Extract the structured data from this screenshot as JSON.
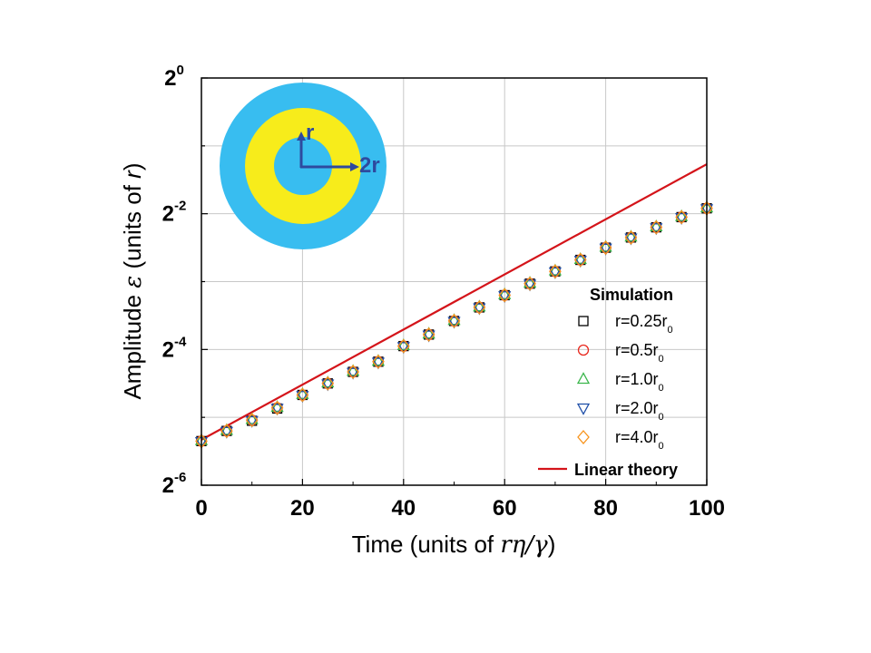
{
  "chart_data": {
    "type": "scatter",
    "xlabel_prefix": "Time (units of ",
    "xlabel_var": "rη/γ",
    "xlabel_suffix": ")",
    "ylabel_prefix": "Amplitude ",
    "ylabel_var": "ε",
    "ylabel_mid": " (units of ",
    "ylabel_var2": "r",
    "ylabel_suffix": ")",
    "xlim": [
      0,
      100
    ],
    "ylim_log2": [
      -6,
      0
    ],
    "y_scale": "log2",
    "grid": true,
    "legend_placement": "bottom-right",
    "x_ticks": [
      "0",
      "20",
      "40",
      "60",
      "80",
      "100"
    ],
    "y_ticks": [
      {
        "base": "2",
        "exp": "-6"
      },
      {
        "base": "2",
        "exp": "-4"
      },
      {
        "base": "2",
        "exp": "-2"
      },
      {
        "base": "2",
        "exp": "0"
      }
    ],
    "legend_title": "Simulation",
    "x": [
      0,
      5,
      10,
      15,
      20,
      25,
      30,
      35,
      40,
      45,
      50,
      55,
      60,
      65,
      70,
      75,
      80,
      85,
      90,
      95,
      100
    ],
    "series": [
      {
        "name": "r=0.25r",
        "sub": "0",
        "marker": "square",
        "color": "#000000",
        "y_log2": [
          -5.35,
          -5.2,
          -5.05,
          -4.87,
          -4.67,
          -4.5,
          -4.33,
          -4.18,
          -3.95,
          -3.78,
          -3.58,
          -3.38,
          -3.2,
          -3.03,
          -2.85,
          -2.68,
          -2.5,
          -2.35,
          -2.2,
          -2.05,
          -1.92
        ]
      },
      {
        "name": "r=0.5r",
        "sub": "0",
        "marker": "circle",
        "color": "#e8281e",
        "y_log2": [
          -5.35,
          -5.2,
          -5.04,
          -4.86,
          -4.67,
          -4.5,
          -4.33,
          -4.18,
          -3.95,
          -3.78,
          -3.58,
          -3.38,
          -3.2,
          -3.03,
          -2.85,
          -2.68,
          -2.5,
          -2.35,
          -2.2,
          -2.05,
          -1.92
        ]
      },
      {
        "name": "r=1.0r",
        "sub": "0",
        "marker": "triangle-up",
        "color": "#39b54a",
        "y_log2": [
          -5.34,
          -5.19,
          -5.03,
          -4.85,
          -4.66,
          -4.49,
          -4.32,
          -4.17,
          -3.94,
          -3.77,
          -3.57,
          -3.37,
          -3.19,
          -3.02,
          -2.84,
          -2.67,
          -2.49,
          -2.34,
          -2.19,
          -2.04,
          -1.91
        ]
      },
      {
        "name": "r=2.0r",
        "sub": "0",
        "marker": "triangle-down",
        "color": "#1f4fa8",
        "y_log2": [
          -5.36,
          -5.21,
          -5.05,
          -4.87,
          -4.68,
          -4.51,
          -4.34,
          -4.19,
          -3.96,
          -3.79,
          -3.59,
          -3.39,
          -3.21,
          -3.04,
          -2.86,
          -2.69,
          -2.51,
          -2.36,
          -2.21,
          -2.06,
          -1.93
        ]
      },
      {
        "name": "r=4.0r",
        "sub": "0",
        "marker": "diamond",
        "color": "#f7941d",
        "y_log2": [
          -5.35,
          -5.2,
          -5.04,
          -4.86,
          -4.67,
          -4.5,
          -4.33,
          -4.18,
          -3.95,
          -3.78,
          -3.58,
          -3.38,
          -3.2,
          -3.03,
          -2.85,
          -2.68,
          -2.5,
          -2.35,
          -2.2,
          -2.05,
          -1.92
        ]
      }
    ],
    "theory": {
      "name": "Linear theory",
      "color": "#d4141a",
      "x": [
        0,
        100
      ],
      "y_log2": [
        -5.33,
        -1.27
      ]
    },
    "inset": {
      "outer_color": "#38bdf0",
      "ring_color": "#f7ec1b",
      "arrow_color": "#2e4a9e",
      "label_r": "r",
      "label_2r": "2r"
    }
  }
}
